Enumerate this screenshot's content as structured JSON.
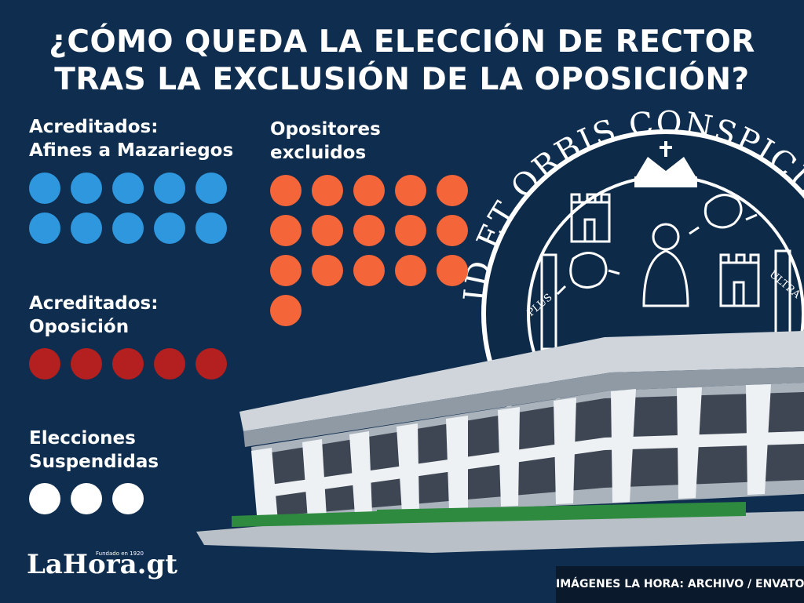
{
  "title": {
    "line1": "¿CÓMO QUEDA LA ELECCIÓN DE RECTOR",
    "line2": "TRAS LA EXCLUSIÓN DE LA OPOSICIÓN?"
  },
  "colors": {
    "background": "#0f2d4e",
    "afines": "#2e97de",
    "oposicion": "#b41f1f",
    "excluidos": "#f4653a",
    "suspendidas": "#ffffff"
  },
  "groups": [
    {
      "id": "afines",
      "label_line1": "Acreditados:",
      "label_line2": "Afines a Mazariegos",
      "count": 10,
      "color": "#2e97de"
    },
    {
      "id": "oposicion",
      "label_line1": "Acreditados:",
      "label_line2": "Oposición",
      "count": 5,
      "color": "#b41f1f"
    },
    {
      "id": "suspendidas",
      "label_line1": "Elecciones",
      "label_line2": "Suspendidas",
      "count": 3,
      "color": "#ffffff"
    },
    {
      "id": "excluidos",
      "label_line1": "Opositores",
      "label_line2": "excluidos",
      "count": 16,
      "color": "#f4653a"
    }
  ],
  "seal": {
    "text": "ID ET ORBIS CONSPICUA CAROLINA ACADEMIA",
    "scroll_left": "PLUS",
    "scroll_right": "ULTRA"
  },
  "logo": {
    "brand": "LaHora.gt",
    "tagline": "Fundado en 1920"
  },
  "credit": "IMÁGENES LA HORA: ARCHIVO / ENVATO"
}
